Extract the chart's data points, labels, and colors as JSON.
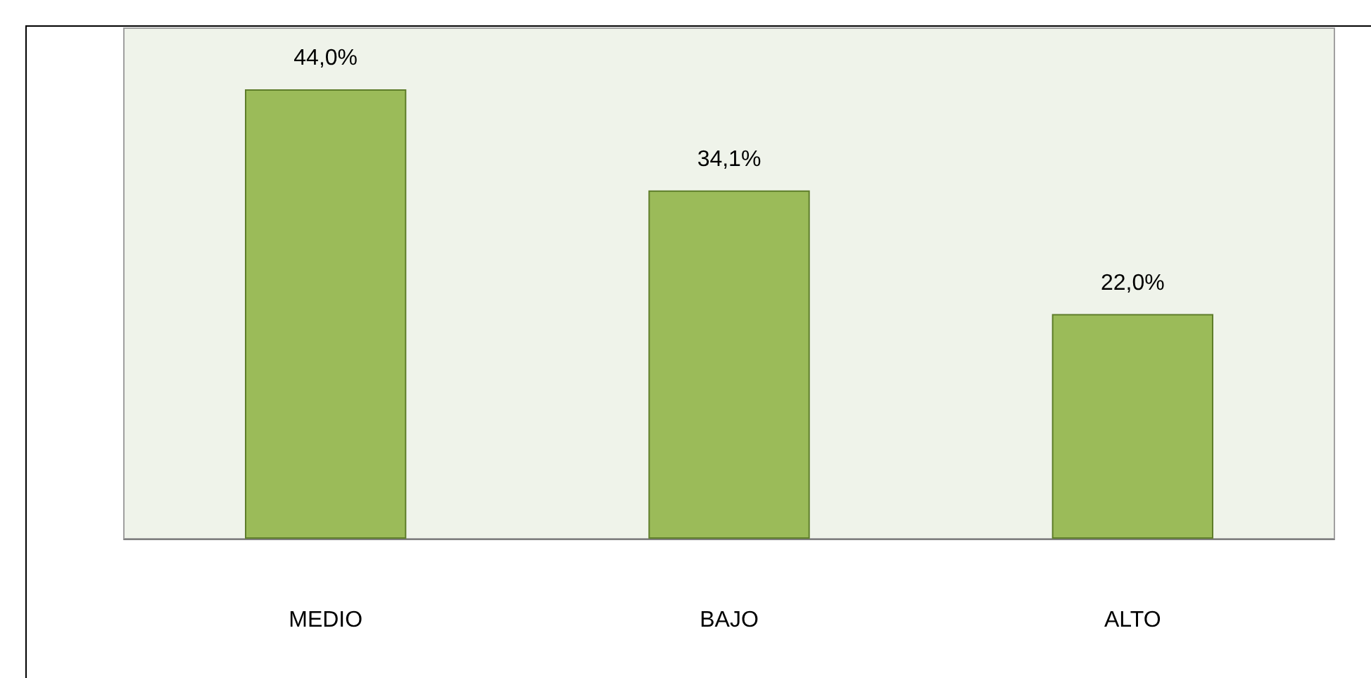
{
  "chart_data": {
    "type": "bar",
    "categories": [
      "MEDIO",
      "BAJO",
      "ALTO"
    ],
    "values": [
      44.0,
      34.1,
      22.0
    ],
    "color": "#9bbb59",
    "value_labels": [
      "44,0%",
      "34,1%",
      "22,0%"
    ],
    "grid": false
  }
}
